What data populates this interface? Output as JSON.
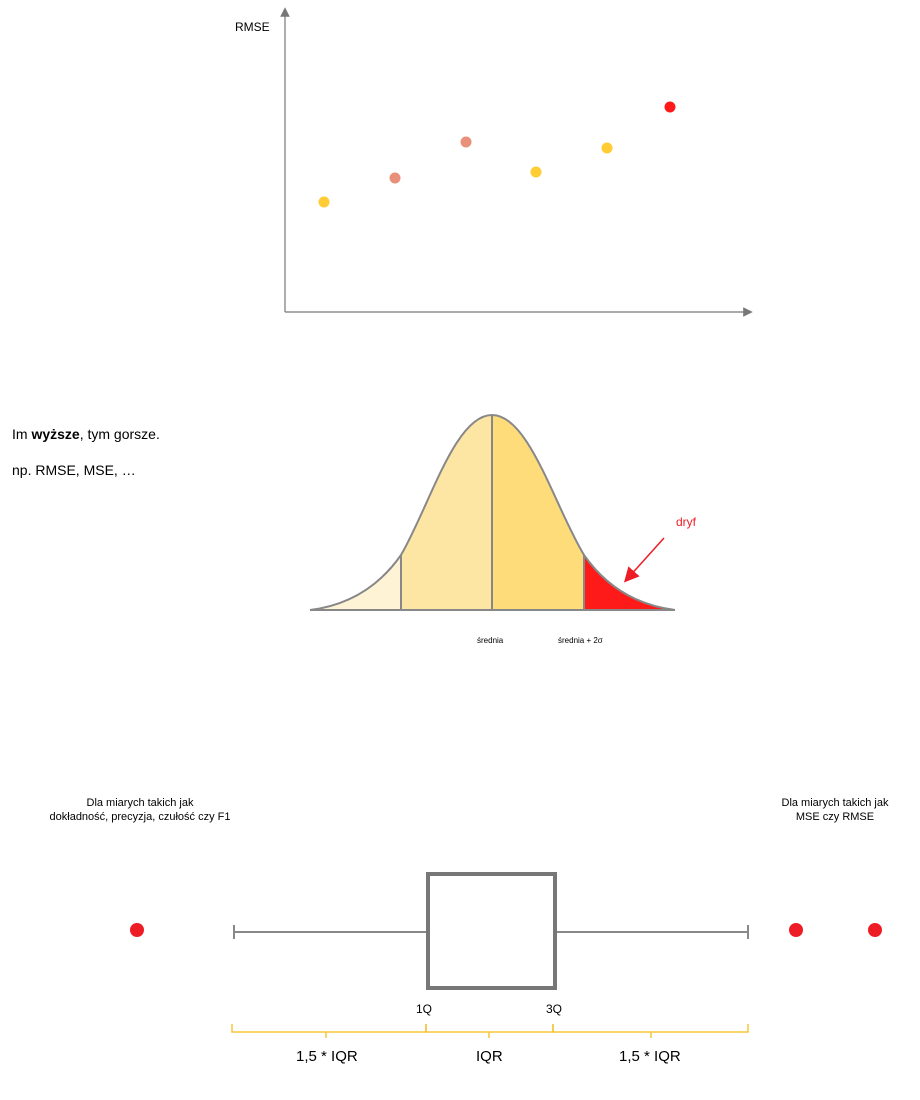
{
  "scatter": {
    "ylabel": "RMSE",
    "points": [
      {
        "color": "#FFCC33"
      },
      {
        "color": "#E8907A"
      },
      {
        "color": "#E8907A"
      },
      {
        "color": "#FFCC33"
      },
      {
        "color": "#FFCC33"
      },
      {
        "color": "#FF1A1A"
      }
    ]
  },
  "statement": {
    "prefix": "Im ",
    "bold": "wyższe",
    "suffix": ", tym gorsze.",
    "examples": "np. RMSE, MSE, …"
  },
  "bell_curve": {
    "mean_label": "średnia",
    "sigma_label": "średnia + 2σ",
    "drift_label": "dryf",
    "colors": {
      "tail_left": "#FFF3D6",
      "band_left": "#FDE6A3",
      "band_right": "#FFDC7A",
      "drift": "#FF1A1A",
      "outline": "#888888"
    }
  },
  "boxplot": {
    "caption_left_line1": "Dla miarych takich jak",
    "caption_left_line2": "dokładność, precyzja, czułość czy F1",
    "caption_right_line1": "Dla miarych takich jak",
    "caption_right_line2": "MSE czy RMSE",
    "q1_label": "1Q",
    "q3_label": "3Q",
    "left_range_label": "1,5 * IQR",
    "iqr_label": "IQR",
    "right_range_label": "1,5 * IQR",
    "outlier_color": "#EE1C25",
    "brace_color": "#F5C53A"
  }
}
